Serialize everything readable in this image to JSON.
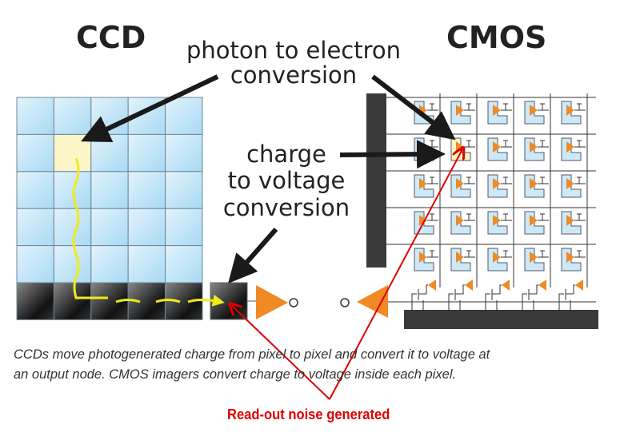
{
  "titles": {
    "ccd": "CCD",
    "cmos": "CMOS"
  },
  "labels": {
    "photon_line1": "photon to electron",
    "photon_line2": "conversion",
    "charge_line1": "charge",
    "charge_line2": "to voltage",
    "charge_line3": "conversion"
  },
  "caption": {
    "line1": "CCDs move photogenerated charge from pixel to pixel and convert it to voltage at",
    "line2": "an output node. CMOS imagers convert charge to voltage inside each pixel."
  },
  "annotation": "Read-out noise generated",
  "colors": {
    "pixel": "#bfe3f7",
    "highlight": "#fbf6c8",
    "amplifier": "#f08a24",
    "charge_path": "#f2ea1a",
    "annotation": "#e00000",
    "arrow": "#1a1a1a"
  }
}
